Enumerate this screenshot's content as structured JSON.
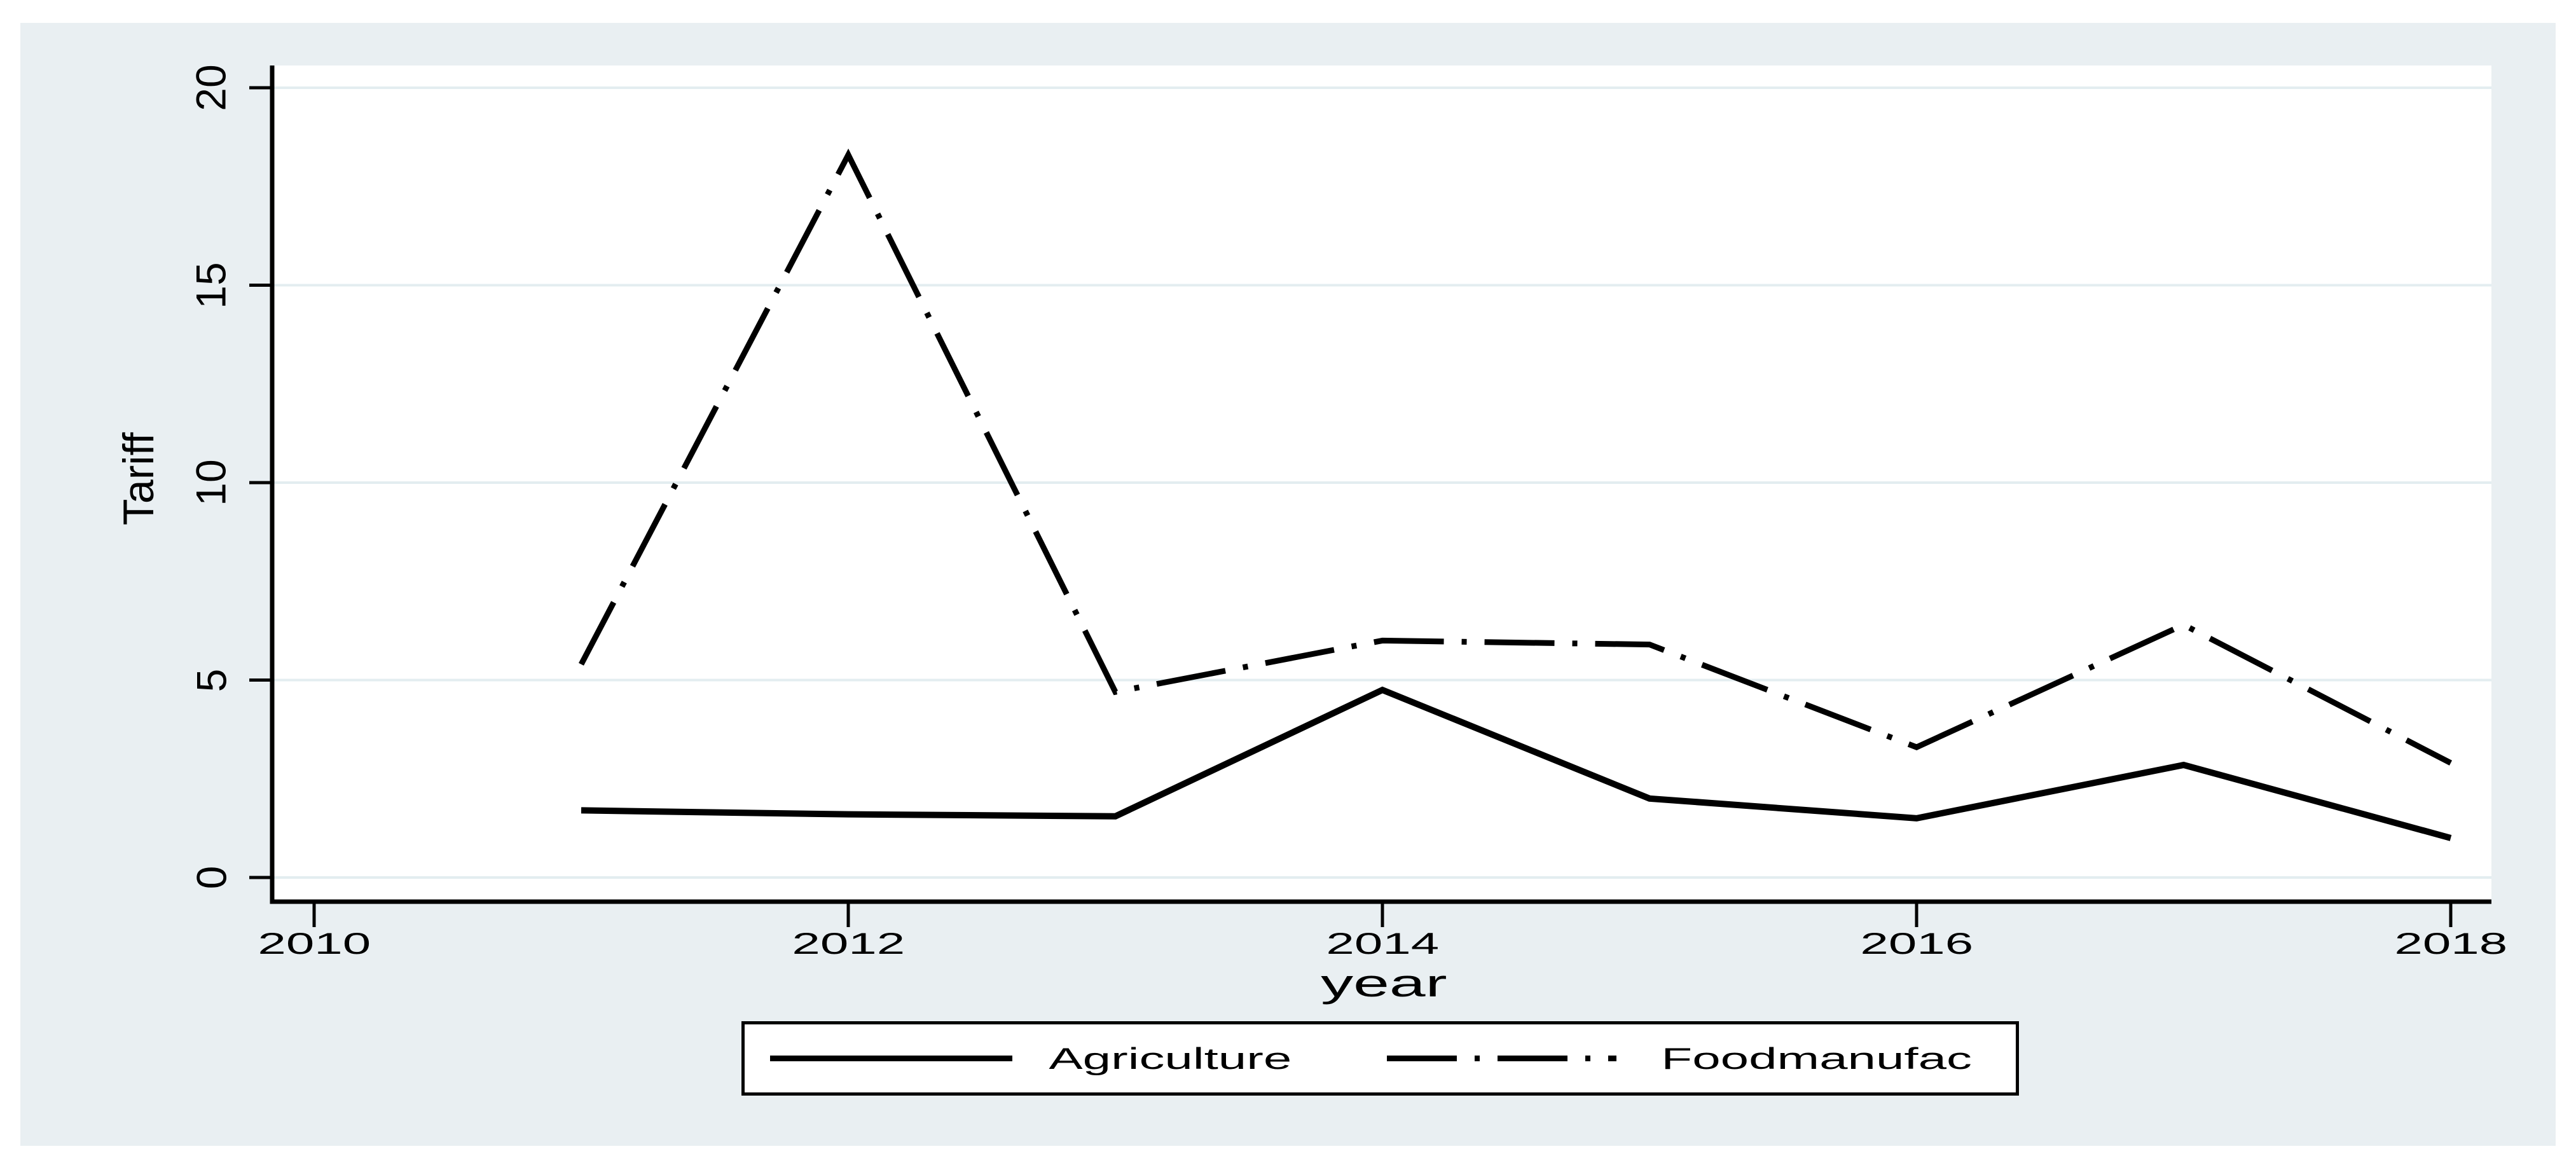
{
  "window": {
    "background_color": "#ffffff",
    "graph_background_color": "#e9eff2"
  },
  "chart_data": {
    "type": "line",
    "title": "",
    "xlabel": "year",
    "ylabel": "Tariff",
    "x": [
      2011,
      2012,
      2013,
      2014,
      2015,
      2016,
      2017,
      2018
    ],
    "series": [
      {
        "name": "Agriculture",
        "line_style": "solid",
        "color": "#000000",
        "values": [
          1.7,
          1.6,
          1.55,
          4.75,
          2.0,
          1.5,
          2.85,
          1.0
        ]
      },
      {
        "name": "Foodmanufac",
        "line_style": "dash-dot",
        "color": "#000000",
        "values": [
          5.4,
          18.3,
          4.7,
          6.0,
          5.9,
          3.3,
          6.4,
          2.9
        ]
      }
    ],
    "x_ticks": [
      2010,
      2012,
      2014,
      2016,
      2018
    ],
    "x_tick_labels": [
      "2010",
      "2012",
      "2014",
      "2016",
      "2018"
    ],
    "y_ticks": [
      0,
      5,
      10,
      15,
      20
    ],
    "y_tick_labels": [
      "0",
      "5",
      "10",
      "15",
      "20"
    ],
    "xlim": [
      2009.85,
      2018.15
    ],
    "ylim": [
      0,
      20
    ],
    "grid": "horizontal-gridlines-at-y-ticks",
    "legend_position": "bottom-center-boxed",
    "colors": {
      "plot_background": "#ffffff",
      "gridline": "#e3edf0",
      "axis": "#000000",
      "line": "#000000"
    }
  }
}
